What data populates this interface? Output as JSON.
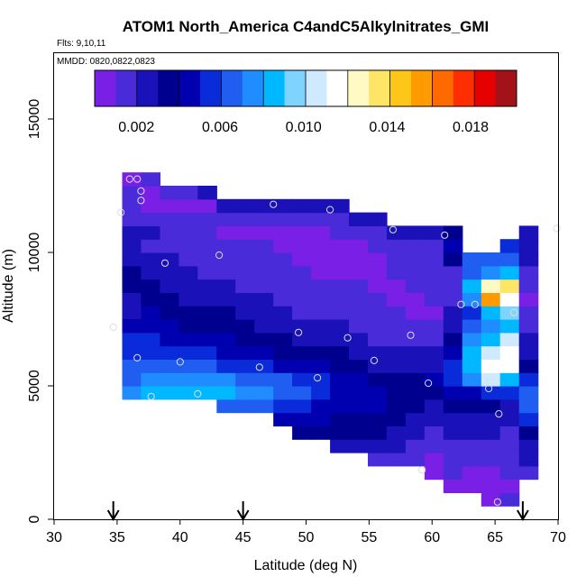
{
  "chart_data": {
    "type": "heatmap",
    "title": "ATOM1 North_America C4andC5Alkylnitrates_GMI",
    "subtitle_flights": "Flts: 9,10,11",
    "subtitle_dates": "MMDD: 0820,0822,0823",
    "xlabel": "Latitude (deg N)",
    "ylabel": "Altitude (m)",
    "xlim": [
      30,
      70
    ],
    "ylim": [
      0,
      17500
    ],
    "x_ticks": [
      "30",
      "35",
      "40",
      "45",
      "50",
      "55",
      "60",
      "65",
      "70"
    ],
    "y_ticks": [
      "0",
      "5000",
      "10000",
      "15000"
    ],
    "colorbar": {
      "range": [
        0,
        0.0202
      ],
      "tick_labels": [
        "0.002",
        "0.006",
        "0.010",
        "0.014",
        "0.018"
      ],
      "tick_values": [
        0.002,
        0.006,
        0.01,
        0.014,
        0.018
      ],
      "colors": [
        "#7a1fe6",
        "#4a2bd9",
        "#1a12b8",
        "#00008f",
        "#0000b0",
        "#0a2bd9",
        "#1f5ef0",
        "#1f8cff",
        "#00b8ff",
        "#7fd3ff",
        "#cfeaff",
        "#ffffff",
        "#fff9c4",
        "#ffe566",
        "#ffc61a",
        "#ff9b00",
        "#ff6a00",
        "#ff2e00",
        "#e60000",
        "#a31219"
      ]
    },
    "cell_size": {
      "lat": 0.75,
      "alt": 500
    },
    "columns": [
      {
        "lat": 35.4,
        "alt_min": 10500,
        "alt_max": 13000,
        "values": [
          0.0025,
          0.0015,
          0.002,
          0.002,
          0.0008
        ]
      },
      {
        "lat": 35.4,
        "alt_min": 7500,
        "alt_max": 10500,
        "values": [
          0.003,
          0.003,
          0.0035,
          0.004,
          0.003,
          0.0025
        ]
      },
      {
        "lat": 35.4,
        "alt_min": 4500,
        "alt_max": 7500,
        "values": [
          0.0075,
          0.007,
          0.0065,
          0.006,
          0.0055,
          0.0045
        ]
      },
      {
        "lat": 36.9,
        "alt_min": 4500,
        "alt_max": 13000,
        "values": [
          0.0085,
          0.0075,
          0.007,
          0.006,
          0.0055,
          0.005,
          0.0045,
          0.004,
          0.0035,
          0.003,
          0.0025,
          0.002,
          0.0025,
          0.002,
          0.0008,
          0.001,
          0.002
        ]
      },
      {
        "lat": 38.4,
        "alt_min": 4500,
        "alt_max": 12500,
        "values": [
          0.0085,
          0.0075,
          0.007,
          0.006,
          0.005,
          0.0045,
          0.004,
          0.0035,
          0.003,
          0.003,
          0.0025,
          0.002,
          0.002,
          0.0015,
          0.001,
          0.002
        ]
      },
      {
        "lat": 39.9,
        "alt_min": 4500,
        "alt_max": 12500,
        "values": [
          0.0085,
          0.008,
          0.0065,
          0.0055,
          0.005,
          0.004,
          0.0035,
          0.003,
          0.0028,
          0.0025,
          0.002,
          0.002,
          0.0015,
          0.0012,
          0.001,
          0.002
        ]
      },
      {
        "lat": 41.4,
        "alt_min": 4500,
        "alt_max": 12500,
        "values": [
          0.009,
          0.008,
          0.0065,
          0.0055,
          0.0045,
          0.004,
          0.0035,
          0.003,
          0.0025,
          0.002,
          0.002,
          0.0018,
          0.0015,
          0.0012,
          0.001,
          0.0025
        ]
      },
      {
        "lat": 42.9,
        "alt_min": 4000,
        "alt_max": 12000,
        "values": [
          0.007,
          0.0085,
          0.0075,
          0.006,
          0.005,
          0.0045,
          0.004,
          0.0035,
          0.003,
          0.0025,
          0.002,
          0.0018,
          0.0015,
          0.001,
          0.0012,
          0.0025
        ]
      },
      {
        "lat": 44.4,
        "alt_min": 4000,
        "alt_max": 12000,
        "values": [
          0.007,
          0.008,
          0.007,
          0.006,
          0.005,
          0.004,
          0.0035,
          0.003,
          0.0025,
          0.002,
          0.002,
          0.0015,
          0.0012,
          0.001,
          0.0015,
          0.0025
        ]
      },
      {
        "lat": 45.9,
        "alt_min": 4000,
        "alt_max": 12000,
        "values": [
          0.0065,
          0.0075,
          0.007,
          0.0055,
          0.0045,
          0.004,
          0.003,
          0.0028,
          0.0025,
          0.002,
          0.0018,
          0.0015,
          0.0012,
          0.001,
          0.0015,
          0.0025
        ]
      },
      {
        "lat": 47.4,
        "alt_min": 3500,
        "alt_max": 12000,
        "values": [
          0.005,
          0.006,
          0.007,
          0.0065,
          0.005,
          0.004,
          0.0035,
          0.003,
          0.0025,
          0.002,
          0.002,
          0.0015,
          0.0012,
          0.0008,
          0.001,
          0.0015,
          0.0025
        ]
      },
      {
        "lat": 48.9,
        "alt_min": 3000,
        "alt_max": 12000,
        "values": [
          0.004,
          0.005,
          0.0055,
          0.0065,
          0.006,
          0.005,
          0.004,
          0.003,
          0.0025,
          0.002,
          0.002,
          0.0015,
          0.0012,
          0.001,
          0.0008,
          0.001,
          0.0015,
          0.0025
        ]
      },
      {
        "lat": 50.4,
        "alt_min": 3000,
        "alt_max": 12000,
        "values": [
          0.004,
          0.0045,
          0.005,
          0.006,
          0.0055,
          0.0045,
          0.0035,
          0.003,
          0.0025,
          0.002,
          0.0015,
          0.0012,
          0.001,
          0.001,
          0.0008,
          0.001,
          0.0015,
          0.0025
        ]
      },
      {
        "lat": 51.9,
        "alt_min": 2500,
        "alt_max": 12000,
        "values": [
          0.003,
          0.0035,
          0.004,
          0.0045,
          0.005,
          0.0045,
          0.004,
          0.0035,
          0.0028,
          0.0022,
          0.0018,
          0.0015,
          0.0012,
          0.001,
          0.0008,
          0.001,
          0.0012,
          0.0015,
          0.0025
        ]
      },
      {
        "lat": 53.4,
        "alt_min": 2500,
        "alt_max": 11500,
        "values": [
          0.003,
          0.0035,
          0.004,
          0.0045,
          0.005,
          0.0045,
          0.0035,
          0.003,
          0.0025,
          0.002,
          0.0018,
          0.0015,
          0.0012,
          0.001,
          0.0008,
          0.001,
          0.0015,
          0.0025
        ]
      },
      {
        "lat": 54.9,
        "alt_min": 2000,
        "alt_max": 11500,
        "values": [
          0.0015,
          0.003,
          0.0035,
          0.004,
          0.0045,
          0.0045,
          0.0035,
          0.003,
          0.0025,
          0.002,
          0.0018,
          0.0015,
          0.0012,
          0.001,
          0.0008,
          0.001,
          0.0012,
          0.0015,
          0.0025
        ]
      },
      {
        "lat": 56.4,
        "alt_min": 2000,
        "alt_max": 11000,
        "values": [
          0.0012,
          0.0025,
          0.003,
          0.0035,
          0.004,
          0.004,
          0.0035,
          0.003,
          0.0025,
          0.002,
          0.0015,
          0.0012,
          0.001,
          0.001,
          0.0012,
          0.0015,
          0.002,
          0.0025
        ]
      },
      {
        "lat": 57.9,
        "alt_min": 2000,
        "alt_max": 11000,
        "values": [
          0.0012,
          0.002,
          0.0025,
          0.003,
          0.0035,
          0.004,
          0.0035,
          0.003,
          0.0025,
          0.002,
          0.0015,
          0.001,
          0.001,
          0.0012,
          0.0015,
          0.0018,
          0.002,
          0.0025
        ]
      },
      {
        "lat": 59.4,
        "alt_min": 1500,
        "alt_max": 11000,
        "values": [
          0.0008,
          0.001,
          0.0015,
          0.002,
          0.0025,
          0.003,
          0.004,
          0.0045,
          0.003,
          0.0025,
          0.002,
          0.0015,
          0.001,
          0.0012,
          0.0015,
          0.0012,
          0.0015,
          0.002,
          0.0025
        ]
      },
      {
        "lat": 60.9,
        "alt_min": 1000,
        "alt_max": 11000,
        "values": [
          0.0008,
          0.0012,
          0.0015,
          0.002,
          0.0025,
          0.003,
          0.0035,
          0.0045,
          0.006,
          0.006,
          0.005,
          0.004,
          0.003,
          0.0025,
          0.002,
          0.0015,
          0.002,
          0.0035,
          0.005,
          0.0035
        ]
      },
      {
        "lat": 62.4,
        "alt_min": 1000,
        "alt_max": 10000,
        "values": [
          0.0008,
          0.001,
          0.0015,
          0.002,
          0.0025,
          0.003,
          0.0035,
          0.0045,
          0.008,
          0.0085,
          0.009,
          0.008,
          0.007,
          0.006,
          0.0075,
          0.009,
          0.007,
          0.0065
        ]
      },
      {
        "lat": 63.9,
        "alt_min": 500,
        "alt_max": 10000,
        "values": [
          0.001,
          0.0008,
          0.001,
          0.0015,
          0.002,
          0.0025,
          0.003,
          0.004,
          0.006,
          0.011,
          0.012,
          0.0105,
          0.0085,
          0.008,
          0.009,
          0.016,
          0.013,
          0.008,
          0.0065
        ]
      },
      {
        "lat": 65.4,
        "alt_min": 500,
        "alt_max": 10500,
        "values": [
          0.0015,
          0.001,
          0.0012,
          0.0015,
          0.0018,
          0.002,
          0.0025,
          0.003,
          0.006,
          0.0085,
          0.012,
          0.0115,
          0.011,
          0.009,
          0.01,
          0.012,
          0.014,
          0.009,
          0.007,
          0.006
        ]
      },
      {
        "lat": 66.9,
        "alt_min": 1500,
        "alt_max": 11000,
        "values": [
          0.002,
          0.0025,
          0.003,
          0.004,
          0.0055,
          0.0065,
          0.007,
          0.006,
          0.0035,
          0.003,
          0.0025,
          0.002,
          0.0015,
          0.001,
          0.0012,
          0.0018,
          0.0022,
          0.0025,
          0.0025
        ]
      }
    ],
    "flight_points": [
      {
        "lat": 34.7,
        "alt": 7200
      },
      {
        "lat": 35.3,
        "alt": 11500
      },
      {
        "lat": 36.0,
        "alt": 12750
      },
      {
        "lat": 36.6,
        "alt": 12750
      },
      {
        "lat": 36.9,
        "alt": 12300
      },
      {
        "lat": 36.9,
        "alt": 11950
      },
      {
        "lat": 37.7,
        "alt": 4600
      },
      {
        "lat": 36.6,
        "alt": 6050
      },
      {
        "lat": 38.8,
        "alt": 9600
      },
      {
        "lat": 40.0,
        "alt": 5900
      },
      {
        "lat": 41.4,
        "alt": 4700
      },
      {
        "lat": 43.1,
        "alt": 9900
      },
      {
        "lat": 46.3,
        "alt": 5700
      },
      {
        "lat": 47.4,
        "alt": 11800
      },
      {
        "lat": 49.4,
        "alt": 7000
      },
      {
        "lat": 50.9,
        "alt": 5300
      },
      {
        "lat": 51.9,
        "alt": 11600
      },
      {
        "lat": 53.3,
        "alt": 6800
      },
      {
        "lat": 55.4,
        "alt": 5950
      },
      {
        "lat": 56.9,
        "alt": 10850
      },
      {
        "lat": 58.3,
        "alt": 6900
      },
      {
        "lat": 59.7,
        "alt": 5100
      },
      {
        "lat": 59.2,
        "alt": 1850
      },
      {
        "lat": 61.0,
        "alt": 10650
      },
      {
        "lat": 62.3,
        "alt": 8050
      },
      {
        "lat": 63.4,
        "alt": 8050
      },
      {
        "lat": 64.5,
        "alt": 4900
      },
      {
        "lat": 65.2,
        "alt": 650
      },
      {
        "lat": 65.3,
        "alt": 3950
      },
      {
        "lat": 66.5,
        "alt": 7750
      },
      {
        "lat": 69.9,
        "alt": 10900
      }
    ],
    "arrow_markers_lat": [
      34.7,
      45.0,
      67.2
    ]
  }
}
